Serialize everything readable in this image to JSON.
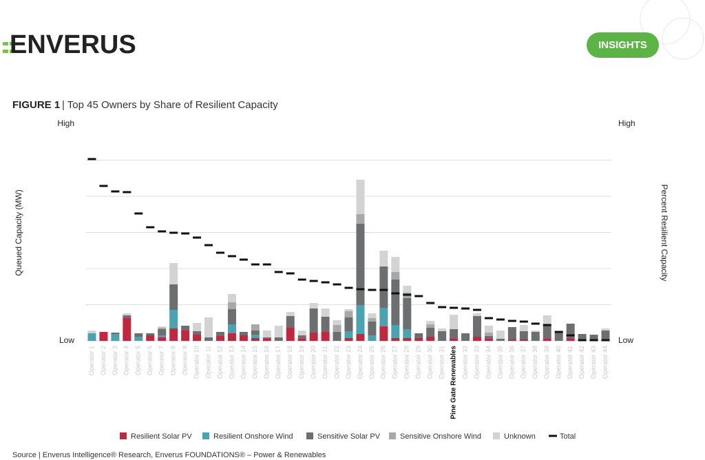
{
  "header": {
    "logo": "ENVERUS",
    "button": "INSIGHTS"
  },
  "figure_label": "FIGURE 1",
  "source": "Source | Enverus Intelligence® Research, Enverus FOUNDATIONS® – Power & Renewables",
  "chart_data": {
    "type": "bar",
    "stacked": true,
    "title": "| Top 45 Owners by Share of Resilient Capacity",
    "y_label": "Queued Capacity (MW)",
    "y2_label": "Percent Resilient Capacity",
    "categories": [
      "Operator 1",
      "Operator 2",
      "Operator 3",
      "Operator 4",
      "Operator 5",
      "Operator 6",
      "Operator 7",
      "Operator 8",
      "Operator 9",
      "Operator 10",
      "Operator 11",
      "Operator 12",
      "Operator 13",
      "Operator 14",
      "Operator 15",
      "Operator 16",
      "Operator 17",
      "Operator 18",
      "Operator 19",
      "Operator 20",
      "Operator 21",
      "Operator 22",
      "Operator 23",
      "Operator 24",
      "Operator 25",
      "Operator 26",
      "Operator 27",
      "Operator 28",
      "Operator 29",
      "Operator 30",
      "Operator 31",
      "Pine Gate Renewables",
      "Operator 32",
      "Operator 33",
      "Operator 34",
      "Operator 35",
      "Operator 36",
      "Operator 37",
      "Operator 38",
      "Operator 39",
      "Operator 40",
      "Operator 41",
      "Operator 42",
      "Operator 43",
      "Operator 44"
    ],
    "highlight_category": 31,
    "ylim": [
      0,
      315
    ],
    "yticks": [
      {
        "value": 0,
        "label": "Low"
      },
      {
        "value": 52.5,
        "label": null
      },
      {
        "value": 105,
        "label": null
      },
      {
        "value": 157.5,
        "label": null
      },
      {
        "value": 210,
        "label": null
      },
      {
        "value": 262.5,
        "label": null
      },
      {
        "value": 315,
        "label": "High"
      }
    ],
    "y2lim": [
      0,
      315
    ],
    "y2ticks": [
      {
        "value": 0,
        "label": "Low"
      },
      {
        "value": 315,
        "label": "High"
      }
    ],
    "grid": true,
    "series": [
      {
        "name": "Resilient Solar PV",
        "color": "#c0283f",
        "values": [
          0,
          13,
          0,
          33,
          0,
          8,
          5,
          18,
          15,
          9,
          0,
          7,
          11,
          8,
          4,
          3,
          0,
          19,
          3,
          12,
          13,
          0,
          4,
          10,
          0,
          21,
          4,
          4,
          4,
          6,
          0,
          3,
          0,
          6,
          3,
          0,
          2,
          2,
          0,
          3,
          0,
          3,
          0,
          0,
          0
        ]
      },
      {
        "name": "Resilient Onshore Wind",
        "color": "#4aa3ae",
        "values": [
          11,
          0,
          10,
          0,
          6,
          0,
          3,
          27,
          0,
          0,
          0,
          0,
          13,
          0,
          5,
          0,
          0,
          0,
          0,
          0,
          0,
          0,
          10,
          42,
          8,
          27,
          19,
          13,
          0,
          0,
          0,
          0,
          0,
          0,
          0,
          0,
          0,
          0,
          0,
          0,
          0,
          0,
          0,
          0,
          0
        ]
      },
      {
        "name": "Sensitive Solar PV",
        "color": "#6d6e70",
        "values": [
          0,
          0,
          2,
          4,
          5,
          3,
          9,
          37,
          7,
          5,
          5,
          6,
          22,
          5,
          6,
          2,
          5,
          17,
          5,
          35,
          22,
          13,
          20,
          118,
          20,
          60,
          66,
          45,
          7,
          13,
          14,
          14,
          11,
          30,
          4,
          3,
          18,
          12,
          13,
          20,
          12,
          22,
          10,
          9,
          15
        ]
      },
      {
        "name": "Sensitive Onshore Wind",
        "color": "#a7a8aa",
        "values": [
          0,
          0,
          0,
          0,
          0,
          0,
          2,
          0,
          0,
          0,
          0,
          0,
          10,
          0,
          9,
          0,
          0,
          0,
          0,
          0,
          0,
          10,
          9,
          14,
          5,
          0,
          11,
          8,
          0,
          5,
          0,
          0,
          0,
          0,
          5,
          0,
          0,
          0,
          0,
          0,
          0,
          0,
          0,
          0,
          0
        ]
      },
      {
        "name": "Unknown",
        "color": "#d3d3d3",
        "values": [
          4,
          0,
          0,
          3,
          0,
          0,
          2,
          31,
          0,
          12,
          29,
          0,
          12,
          0,
          0,
          10,
          17,
          6,
          7,
          8,
          12,
          7,
          3,
          50,
          7,
          23,
          22,
          10,
          0,
          5,
          4,
          21,
          0,
          4,
          10,
          12,
          0,
          9,
          2,
          14,
          0,
          0,
          0,
          0,
          3
        ]
      },
      {
        "name": "Total",
        "type": "dash",
        "axis": "y2",
        "color": "#111111",
        "values": [
          264,
          225,
          217,
          216,
          185,
          165,
          159,
          157,
          156,
          150,
          139,
          128,
          123,
          118,
          111,
          111,
          100,
          98,
          89,
          87,
          85,
          82,
          77,
          75,
          74,
          74,
          69,
          67,
          65,
          55,
          49,
          48,
          47,
          45,
          33,
          31,
          29,
          28,
          25,
          23,
          13,
          8,
          1,
          1,
          1
        ]
      }
    ]
  }
}
